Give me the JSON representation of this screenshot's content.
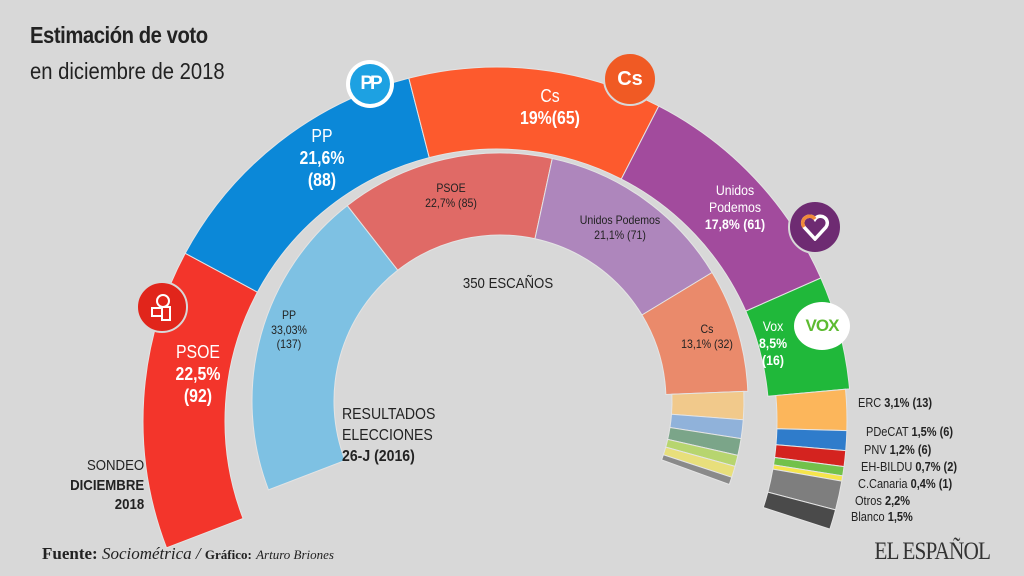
{
  "title": {
    "line1": "Estimación de voto",
    "line2": "en diciembre de 2018"
  },
  "center_label": "350 ESCAÑOS",
  "outer_caption": {
    "line1": "SONDEO",
    "line2": "DICIEMBRE",
    "line3": "2018"
  },
  "inner_caption": {
    "line1": "RESULTADOS",
    "line2": "ELECCIONES",
    "line3": "26-J (2016)"
  },
  "footer": {
    "source_label": "Fuente:",
    "source": "Sociométrica",
    "sep": "/",
    "graphic_label": "Gráfico:",
    "graphic_author": "Arturo Briones",
    "brand": "EL ESPAÑOL"
  },
  "logos": {
    "pp": "PP",
    "cs": "Cs",
    "vox": "VOX"
  },
  "chart_data": [
    {
      "type": "pie",
      "subtype": "semi-donut",
      "title": "SONDEO DICIEMBRE 2018",
      "total_seats": 350,
      "series": [
        {
          "name": "PSOE",
          "pct": 22.5,
          "pct_label": "22,5%",
          "seats": 92,
          "color": "#f3352b"
        },
        {
          "name": "PP",
          "pct": 21.6,
          "pct_label": "21,6%",
          "seats": 88,
          "color": "#0b88d8"
        },
        {
          "name": "Cs",
          "pct": 19,
          "pct_label": "19%",
          "seats": 65,
          "color": "#fd5a2d"
        },
        {
          "name": "Unidos Podemos",
          "pct": 17.8,
          "pct_label": "17,8%",
          "seats": 61,
          "color": "#a24b9d"
        },
        {
          "name": "Vox",
          "pct": 8.5,
          "pct_label": "8,5%",
          "seats": 16,
          "color": "#20b83a"
        },
        {
          "name": "ERC",
          "pct": 3.1,
          "pct_label": "3,1%",
          "seats": 13,
          "color": "#fcb65b"
        },
        {
          "name": "PDeCAT",
          "pct": 1.5,
          "pct_label": "1,5%",
          "seats": 6,
          "color": "#2f7ccb"
        },
        {
          "name": "PNV",
          "pct": 1.2,
          "pct_label": "1,2%",
          "seats": 6,
          "color": "#d4231f"
        },
        {
          "name": "EH-BILDU",
          "pct": 0.7,
          "pct_label": "0,7%",
          "seats": 2,
          "color": "#72c14a"
        },
        {
          "name": "C.Canaria",
          "pct": 0.4,
          "pct_label": "0,4%",
          "seats": 1,
          "color": "#f6e54b"
        },
        {
          "name": "Otros",
          "pct": 2.2,
          "pct_label": "2,2%",
          "seats": null,
          "color": "#7e7e7e"
        },
        {
          "name": "Blanco",
          "pct": 1.5,
          "pct_label": "1,5%",
          "seats": null,
          "color": "#4a4a4a"
        }
      ]
    },
    {
      "type": "pie",
      "subtype": "semi-donut",
      "title": "RESULTADOS ELECCIONES 26-J (2016)",
      "series": [
        {
          "name": "PP",
          "pct": 33.03,
          "pct_label": "33,03%",
          "seats": 137,
          "color": "#7ec1e3"
        },
        {
          "name": "PSOE",
          "pct": 22.7,
          "pct_label": "22,7%",
          "seats": 85,
          "color": "#e06a66"
        },
        {
          "name": "Unidos Podemos",
          "pct": 21.1,
          "pct_label": "21,1%",
          "seats": 71,
          "color": "#ae86bc"
        },
        {
          "name": "Cs",
          "pct": 13.1,
          "pct_label": "13,1%",
          "seats": 32,
          "color": "#ea8a6b"
        }
      ],
      "unlabeled_segment_colors": [
        "#f1c98b",
        "#90b2da",
        "#7ba589",
        "#b7d56f",
        "#e8df7b",
        "#8a8a8a"
      ]
    }
  ]
}
